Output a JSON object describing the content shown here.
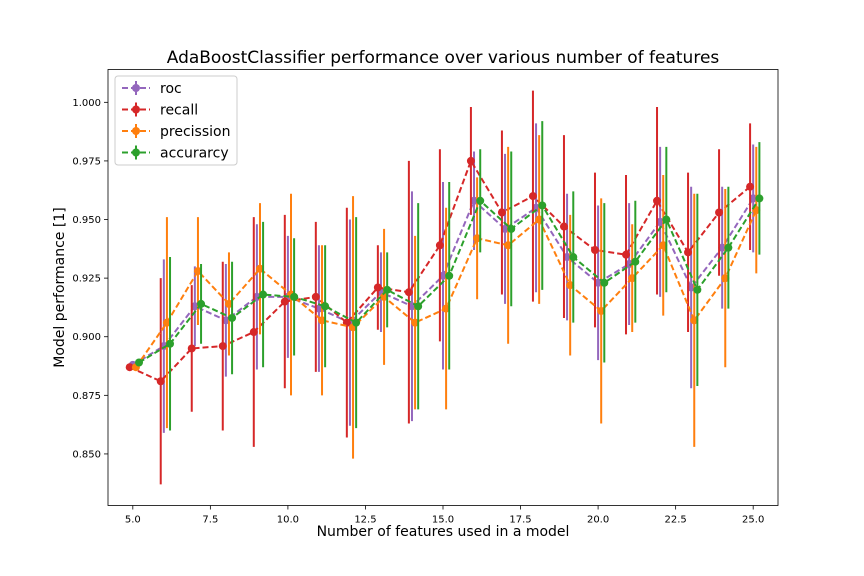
{
  "chart_data": {
    "type": "line",
    "title": "AdaBoostClassifier performance over various number of features",
    "xlabel": "Number of features used in a model",
    "ylabel": "Model performance [1]",
    "xlim": [
      4.2,
      25.8
    ],
    "ylim": [
      0.828,
      1.014
    ],
    "xticks": [
      5.0,
      7.5,
      10.0,
      12.5,
      15.0,
      17.5,
      20.0,
      22.5,
      25.0
    ],
    "xtick_labels": [
      "5.0",
      "7.5",
      "10.0",
      "12.5",
      "15.0",
      "17.5",
      "20.0",
      "22.5",
      "25.0"
    ],
    "yticks": [
      0.85,
      0.875,
      0.9,
      0.925,
      0.95,
      0.975,
      1.0
    ],
    "ytick_labels": [
      "0.850",
      "0.875",
      "0.900",
      "0.925",
      "0.950",
      "0.975",
      "1.000"
    ],
    "grid": false,
    "legend_position": "top-left",
    "x": [
      5,
      6,
      7,
      8,
      9,
      10,
      11,
      12,
      13,
      14,
      15,
      16,
      17,
      18,
      19,
      20,
      21,
      22,
      23,
      24,
      25
    ],
    "series": [
      {
        "name": "roc",
        "color": "#9467bd",
        "offset": 0.0,
        "values": [
          0.888,
          0.896,
          0.913,
          0.907,
          0.917,
          0.917,
          0.912,
          0.906,
          0.919,
          0.913,
          0.926,
          0.958,
          0.946,
          0.955,
          0.934,
          0.923,
          0.931,
          0.949,
          0.921,
          0.938,
          0.959
        ],
        "errors": [
          0.0,
          0.037,
          0.017,
          0.024,
          0.031,
          0.026,
          0.027,
          0.044,
          0.017,
          0.049,
          0.04,
          0.021,
          0.032,
          0.036,
          0.027,
          0.033,
          0.026,
          0.032,
          0.043,
          0.026,
          0.023
        ]
      },
      {
        "name": "recall",
        "color": "#d62728",
        "offset": -0.1,
        "values": [
          0.887,
          0.881,
          0.895,
          0.896,
          0.902,
          0.915,
          0.917,
          0.906,
          0.921,
          0.919,
          0.939,
          0.975,
          0.953,
          0.96,
          0.947,
          0.937,
          0.935,
          0.958,
          0.936,
          0.953,
          0.964
        ],
        "errors": [
          0.0,
          0.044,
          0.027,
          0.036,
          0.049,
          0.037,
          0.032,
          0.049,
          0.018,
          0.056,
          0.041,
          0.023,
          0.035,
          0.045,
          0.039,
          0.033,
          0.034,
          0.04,
          0.034,
          0.027,
          0.027
        ]
      },
      {
        "name": "precission",
        "color": "#ff7f0e",
        "offset": 0.1,
        "values": [
          0.887,
          0.906,
          0.928,
          0.914,
          0.929,
          0.918,
          0.907,
          0.904,
          0.917,
          0.906,
          0.912,
          0.942,
          0.939,
          0.95,
          0.922,
          0.911,
          0.925,
          0.939,
          0.907,
          0.925,
          0.954
        ],
        "errors": [
          0.0,
          0.045,
          0.023,
          0.022,
          0.028,
          0.043,
          0.032,
          0.056,
          0.029,
          0.037,
          0.043,
          0.026,
          0.042,
          0.036,
          0.03,
          0.048,
          0.023,
          0.03,
          0.054,
          0.038,
          0.027
        ]
      },
      {
        "name": "accurarcy",
        "color": "#2ca02c",
        "offset": 0.2,
        "values": [
          0.889,
          0.897,
          0.914,
          0.908,
          0.918,
          0.917,
          0.913,
          0.906,
          0.92,
          0.913,
          0.926,
          0.958,
          0.946,
          0.956,
          0.934,
          0.923,
          0.932,
          0.95,
          0.92,
          0.938,
          0.959
        ],
        "errors": [
          0.0,
          0.037,
          0.017,
          0.024,
          0.031,
          0.025,
          0.026,
          0.045,
          0.016,
          0.044,
          0.04,
          0.022,
          0.033,
          0.036,
          0.028,
          0.034,
          0.026,
          0.031,
          0.041,
          0.026,
          0.024
        ]
      }
    ]
  }
}
